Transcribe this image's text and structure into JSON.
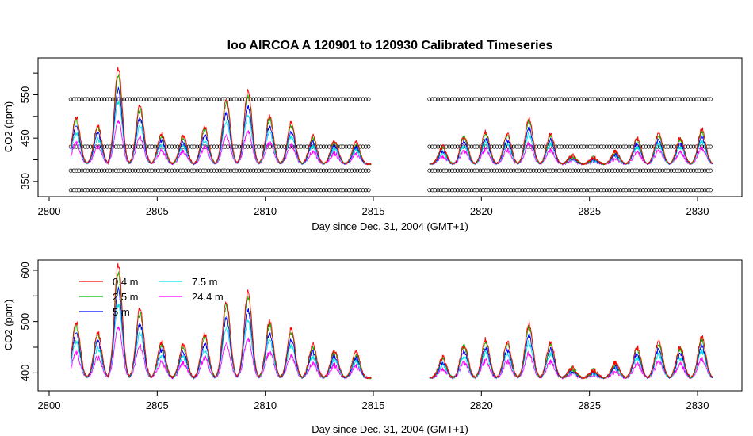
{
  "chart_data": [
    {
      "type": "line",
      "title": "loo   AIRCOA  A    120901  to  120930   Calibrated Timeseries",
      "xlabel": "Day since Dec. 31, 2004 (GMT+1)",
      "ylabel": "CO2 (ppm)",
      "xlim": [
        2800,
        2830
      ],
      "ylim": [
        315,
        635
      ],
      "x_ticks": [
        2800,
        2805,
        2810,
        2815,
        2820,
        2825,
        2830
      ],
      "y_ticks": [
        350,
        450,
        550
      ],
      "y_tick_labels": [
        "350",
        "450",
        "550"
      ],
      "grid": false,
      "legend": "none",
      "segments": [
        [
          2801.0,
          2814.9
        ],
        [
          2817.6,
          2830.7
        ]
      ],
      "reference_levels": [
        330,
        375,
        430,
        540
      ],
      "series": [
        {
          "color": "#ff0000",
          "amp": 1.0
        },
        {
          "color": "#00bb00",
          "amp": 0.93
        },
        {
          "color": "#0000ff",
          "amp": 0.78
        },
        {
          "color": "#00e5e5",
          "amp": 0.65
        },
        {
          "color": "#ff00ff",
          "amp": 0.45
        }
      ]
    },
    {
      "type": "line",
      "title": "",
      "xlabel": "Day since Dec. 31, 2004 (GMT+1)",
      "ylabel": "CO2 (ppm)",
      "xlim": [
        2800,
        2830
      ],
      "ylim": [
        365,
        620
      ],
      "x_ticks": [
        2800,
        2805,
        2810,
        2815,
        2820,
        2825,
        2830
      ],
      "y_ticks": [
        400,
        500,
        600
      ],
      "y_tick_labels": [
        "400",
        "500",
        "600"
      ],
      "grid": false,
      "legend": "top-left",
      "segments": [
        [
          2801.0,
          2814.9
        ],
        [
          2817.6,
          2830.7
        ]
      ],
      "series": [
        {
          "name": "0.4 m",
          "color": "#ff0000",
          "amp": 1.0
        },
        {
          "name": "2.5 m",
          "color": "#00bb00",
          "amp": 0.93
        },
        {
          "name": "5 m",
          "color": "#0000ff",
          "amp": 0.78
        },
        {
          "name": "7.5 m",
          "color": "#00e5e5",
          "amp": 0.65
        },
        {
          "name": "24.4 m",
          "color": "#ff00ff",
          "amp": 0.45
        }
      ]
    }
  ],
  "daily_peaks": [
    {
      "day": 2801.25,
      "co2": 500
    },
    {
      "day": 2802.25,
      "co2": 480
    },
    {
      "day": 2803.2,
      "co2": 610
    },
    {
      "day": 2804.2,
      "co2": 525
    },
    {
      "day": 2805.2,
      "co2": 460
    },
    {
      "day": 2806.2,
      "co2": 455
    },
    {
      "day": 2807.2,
      "co2": 475
    },
    {
      "day": 2808.2,
      "co2": 540
    },
    {
      "day": 2809.2,
      "co2": 560
    },
    {
      "day": 2810.2,
      "co2": 500
    },
    {
      "day": 2811.2,
      "co2": 485
    },
    {
      "day": 2812.2,
      "co2": 455
    },
    {
      "day": 2813.2,
      "co2": 445
    },
    {
      "day": 2814.2,
      "co2": 440
    },
    {
      "day": 2818.2,
      "co2": 430
    },
    {
      "day": 2819.2,
      "co2": 455
    },
    {
      "day": 2820.2,
      "co2": 465
    },
    {
      "day": 2821.2,
      "co2": 460
    },
    {
      "day": 2822.2,
      "co2": 495
    },
    {
      "day": 2823.2,
      "co2": 460
    },
    {
      "day": 2824.2,
      "co2": 410
    },
    {
      "day": 2825.2,
      "co2": 405
    },
    {
      "day": 2826.2,
      "co2": 420
    },
    {
      "day": 2827.2,
      "co2": 450
    },
    {
      "day": 2828.2,
      "co2": 460
    },
    {
      "day": 2829.2,
      "co2": 450
    },
    {
      "day": 2830.2,
      "co2": 470
    }
  ],
  "night_baseline": 390
}
